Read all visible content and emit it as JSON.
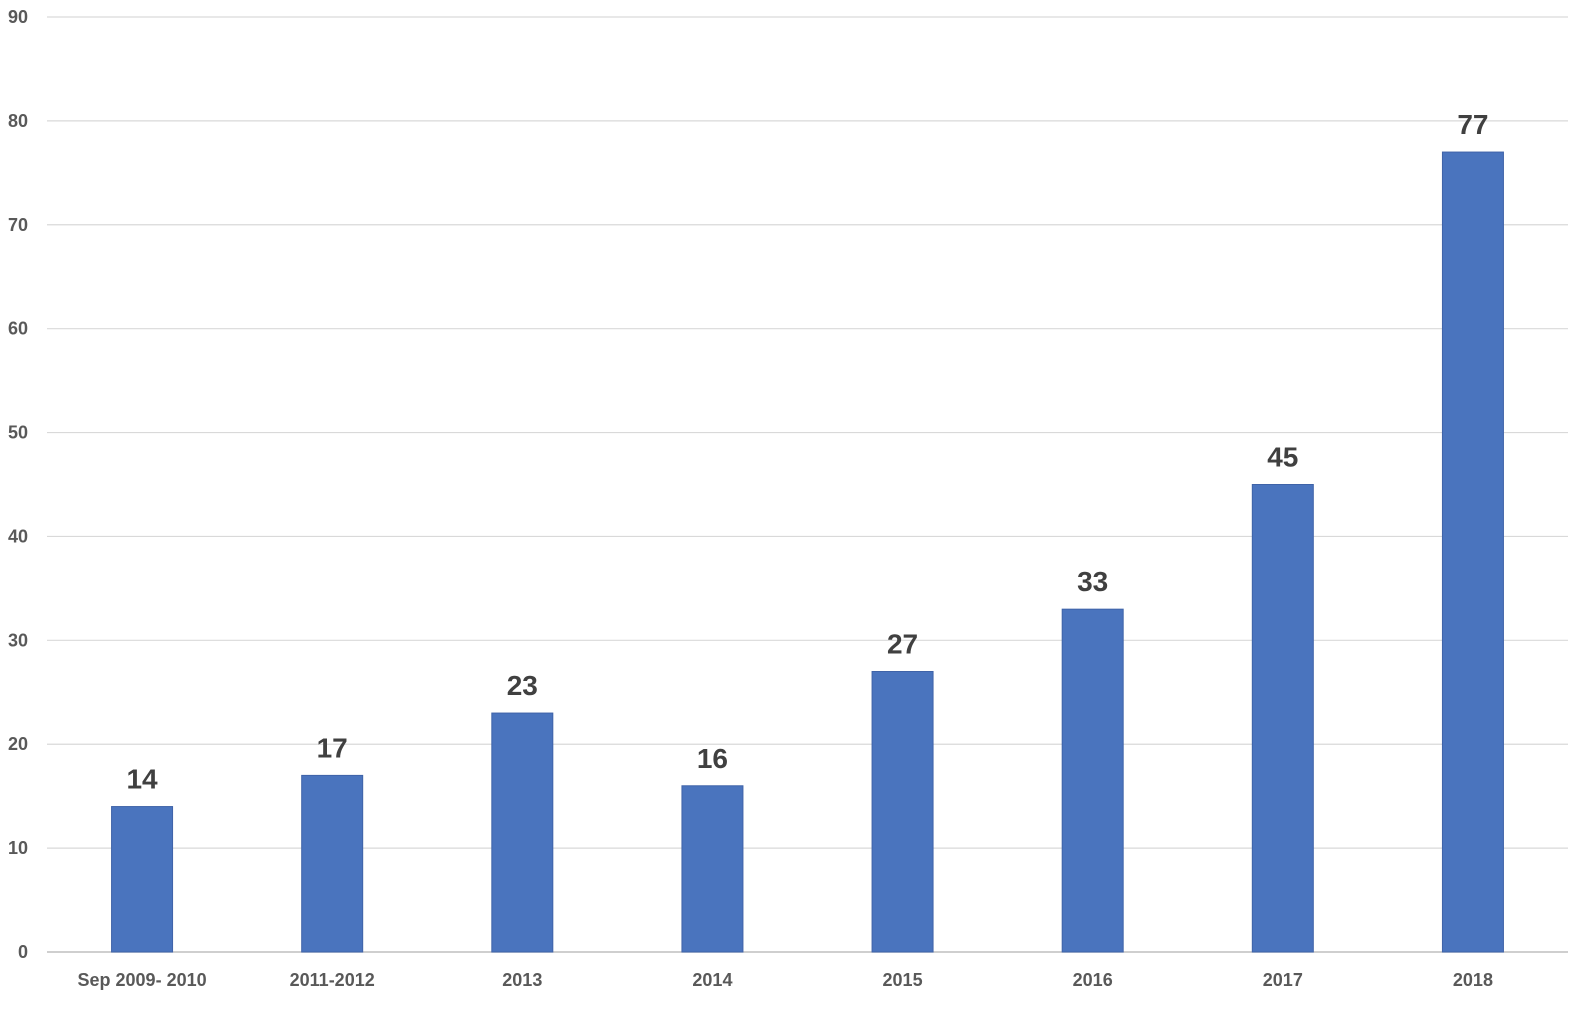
{
  "chart_data": {
    "type": "bar",
    "title": "",
    "xlabel": "",
    "ylabel": "",
    "categories": [
      "Sep 2009- 2010",
      "2011-2012",
      "2013",
      "2014",
      "2015",
      "2016",
      "2017",
      "2018"
    ],
    "values": [
      14,
      17,
      23,
      16,
      27,
      33,
      45,
      77
    ],
    "ylim": [
      0,
      90
    ],
    "yticks": [
      0,
      10,
      20,
      30,
      40,
      50,
      60,
      70,
      80,
      90
    ],
    "ytick_labels": [
      "0",
      "10",
      "20",
      "30",
      "40",
      "50",
      "60",
      "70",
      "80",
      "90"
    ],
    "grid": true,
    "legend": "none",
    "data_labels": [
      "14",
      "17",
      "23",
      "16",
      "27",
      "33",
      "45",
      "77"
    ],
    "colors": {
      "bar": "#4a74be",
      "gridline": "#d9d9d9",
      "text": "#595959",
      "data_label": "#404040"
    }
  }
}
